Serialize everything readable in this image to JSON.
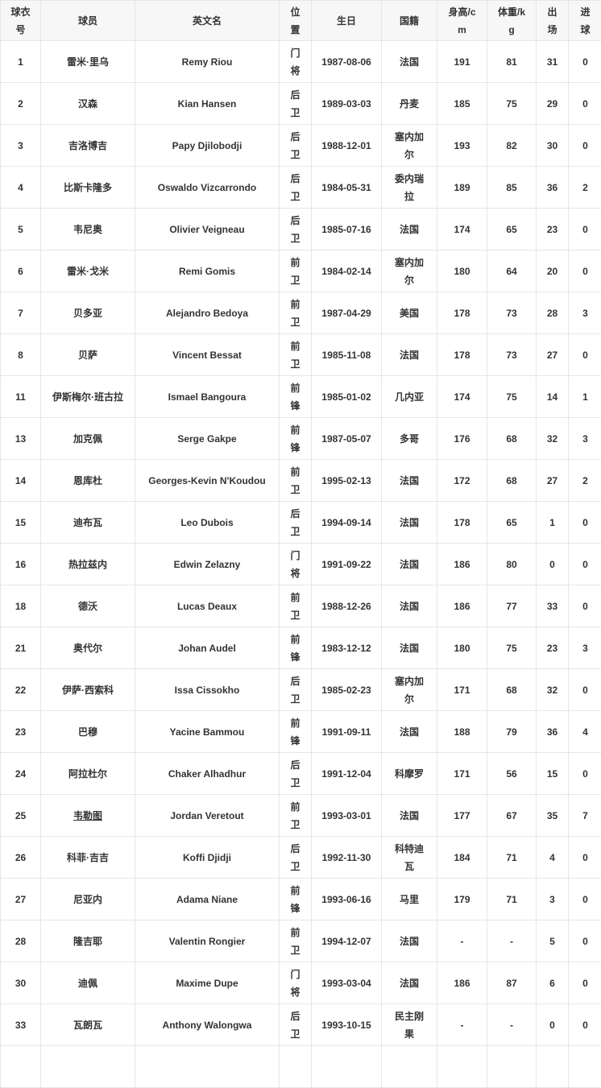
{
  "headers": [
    "球衣号",
    "球员",
    "英文名",
    "位置",
    "生日",
    "国籍",
    "身高/cm",
    "体重/kg",
    "出场",
    "进球"
  ],
  "rows": [
    {
      "no": "1",
      "name": "雷米·里乌",
      "en": "Remy Riou",
      "pos": "门将",
      "birth": "1987-08-06",
      "nat": "法国",
      "h": "191",
      "w": "81",
      "apps": "31",
      "goals": "0"
    },
    {
      "no": "2",
      "name": "汉森",
      "en": "Kian Hansen",
      "pos": "后卫",
      "birth": "1989-03-03",
      "nat": "丹麦",
      "h": "185",
      "w": "75",
      "apps": "29",
      "goals": "0"
    },
    {
      "no": "3",
      "name": "吉洛博吉",
      "en": "Papy Djilobodji",
      "pos": "后卫",
      "birth": "1988-12-01",
      "nat": "塞内加尔",
      "h": "193",
      "w": "82",
      "apps": "30",
      "goals": "0"
    },
    {
      "no": "4",
      "name": "比斯卡隆多",
      "en": "Oswaldo Vizcarrondo",
      "pos": "后卫",
      "birth": "1984-05-31",
      "nat": "委内瑞拉",
      "h": "189",
      "w": "85",
      "apps": "36",
      "goals": "2"
    },
    {
      "no": "5",
      "name": "韦尼奥",
      "en": "Olivier Veigneau",
      "pos": "后卫",
      "birth": "1985-07-16",
      "nat": "法国",
      "h": "174",
      "w": "65",
      "apps": "23",
      "goals": "0"
    },
    {
      "no": "6",
      "name": "雷米·戈米",
      "en": "Remi Gomis",
      "pos": "前卫",
      "birth": "1984-02-14",
      "nat": "塞内加尔",
      "h": "180",
      "w": "64",
      "apps": "20",
      "goals": "0"
    },
    {
      "no": "7",
      "name": "贝多亚",
      "en": "Alejandro Bedoya",
      "pos": "前卫",
      "birth": "1987-04-29",
      "nat": "美国",
      "h": "178",
      "w": "73",
      "apps": "28",
      "goals": "3"
    },
    {
      "no": "8",
      "name": "贝萨",
      "en": "Vincent Bessat",
      "pos": "前卫",
      "birth": "1985-11-08",
      "nat": "法国",
      "h": "178",
      "w": "73",
      "apps": "27",
      "goals": "0"
    },
    {
      "no": "11",
      "name": "伊斯梅尔·班古拉",
      "en": "Ismael Bangoura",
      "pos": "前锋",
      "birth": "1985-01-02",
      "nat": "几内亚",
      "h": "174",
      "w": "75",
      "apps": "14",
      "goals": "1"
    },
    {
      "no": "13",
      "name": "加克佩",
      "en": "Serge Gakpe",
      "pos": "前锋",
      "birth": "1987-05-07",
      "nat": "多哥",
      "h": "176",
      "w": "68",
      "apps": "32",
      "goals": "3"
    },
    {
      "no": "14",
      "name": "恩库杜",
      "en": "Georges-Kevin N'Koudou",
      "pos": "前卫",
      "birth": "1995-02-13",
      "nat": "法国",
      "h": "172",
      "w": "68",
      "apps": "27",
      "goals": "2"
    },
    {
      "no": "15",
      "name": "迪布瓦",
      "en": "Leo Dubois",
      "pos": "后卫",
      "birth": "1994-09-14",
      "nat": "法国",
      "h": "178",
      "w": "65",
      "apps": "1",
      "goals": "0"
    },
    {
      "no": "16",
      "name": "热拉兹内",
      "en": "Edwin Zelazny",
      "pos": "门将",
      "birth": "1991-09-22",
      "nat": "法国",
      "h": "186",
      "w": "80",
      "apps": "0",
      "goals": "0"
    },
    {
      "no": "18",
      "name": "德沃",
      "en": "Lucas Deaux",
      "pos": "前卫",
      "birth": "1988-12-26",
      "nat": "法国",
      "h": "186",
      "w": "77",
      "apps": "33",
      "goals": "0"
    },
    {
      "no": "21",
      "name": "奥代尔",
      "en": "Johan Audel",
      "pos": "前锋",
      "birth": "1983-12-12",
      "nat": "法国",
      "h": "180",
      "w": "75",
      "apps": "23",
      "goals": "3"
    },
    {
      "no": "22",
      "name": "伊萨·西索科",
      "en": "Issa Cissokho",
      "pos": "后卫",
      "birth": "1985-02-23",
      "nat": "塞内加尔",
      "h": "171",
      "w": "68",
      "apps": "32",
      "goals": "0"
    },
    {
      "no": "23",
      "name": "巴穆",
      "en": "Yacine Bammou",
      "pos": "前锋",
      "birth": "1991-09-11",
      "nat": "法国",
      "h": "188",
      "w": "79",
      "apps": "36",
      "goals": "4"
    },
    {
      "no": "24",
      "name": "阿拉杜尔",
      "en": "Chaker Alhadhur",
      "pos": "后卫",
      "birth": "1991-12-04",
      "nat": "科摩罗",
      "h": "171",
      "w": "56",
      "apps": "15",
      "goals": "0"
    },
    {
      "no": "25",
      "name": "韦勒图",
      "en": "Jordan Veretout",
      "pos": "前卫",
      "birth": "1993-03-01",
      "nat": "法国",
      "h": "177",
      "w": "67",
      "apps": "35",
      "goals": "7",
      "link": true
    },
    {
      "no": "26",
      "name": "科菲·吉吉",
      "en": "Koffi Djidji",
      "pos": "后卫",
      "birth": "1992-11-30",
      "nat": "科特迪瓦",
      "h": "184",
      "w": "71",
      "apps": "4",
      "goals": "0"
    },
    {
      "no": "27",
      "name": "尼亚内",
      "en": "Adama Niane",
      "pos": "前锋",
      "birth": "1993-06-16",
      "nat": "马里",
      "h": "179",
      "w": "71",
      "apps": "3",
      "goals": "0"
    },
    {
      "no": "28",
      "name": "隆吉耶",
      "en": "Valentin Rongier",
      "pos": "前卫",
      "birth": "1994-12-07",
      "nat": "法国",
      "h": "-",
      "w": "-",
      "apps": "5",
      "goals": "0"
    },
    {
      "no": "30",
      "name": "迪佩",
      "en": "Maxime Dupe",
      "pos": "门将",
      "birth": "1993-03-04",
      "nat": "法国",
      "h": "186",
      "w": "87",
      "apps": "6",
      "goals": "0"
    },
    {
      "no": "33",
      "name": "瓦朗瓦",
      "en": "Anthony Walongwa",
      "pos": "后卫",
      "birth": "1993-10-15",
      "nat": "民主刚果",
      "h": "-",
      "w": "-",
      "apps": "0",
      "goals": "0"
    }
  ]
}
